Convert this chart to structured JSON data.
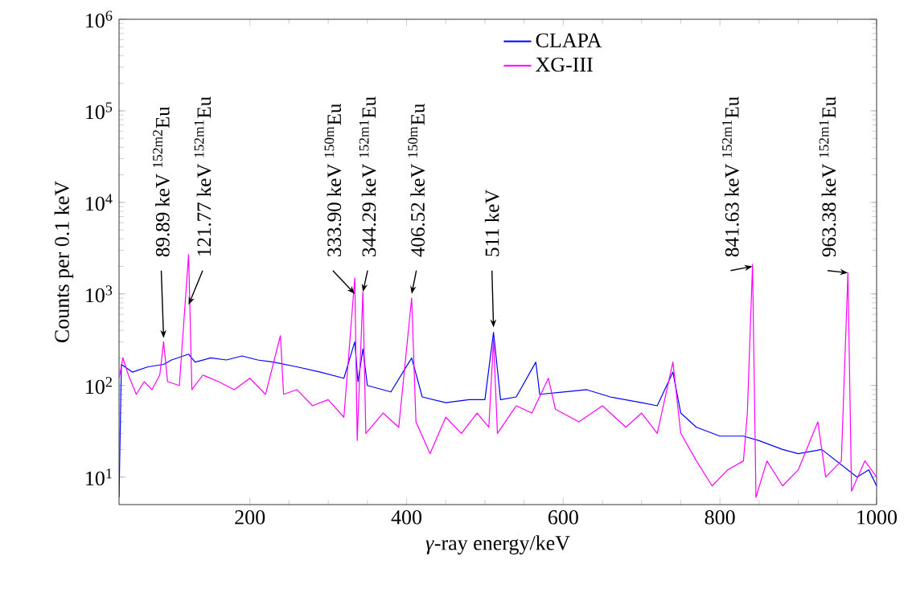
{
  "chart_data": {
    "type": "line",
    "xlabel": "*γ*-ray energy/keV",
    "ylabel": "Counts per 0.1 keV",
    "log": "y",
    "grid": false,
    "legend": "top",
    "marker": "none",
    "line_style": "solid",
    "xlim": [
      33,
      1000
    ],
    "xticks": [
      200,
      400,
      600,
      800,
      1000
    ],
    "ylim": [
      5,
      1000000
    ],
    "yticks": [
      {
        "value": 10,
        "label": "10$^{1}$"
      },
      {
        "value": 100,
        "label": "10$^{2}$"
      },
      {
        "value": 1000,
        "label": "10$^{3}$"
      },
      {
        "value": 10000,
        "label": "10$^{4}$"
      },
      {
        "value": 100000,
        "label": "10$^{5}$"
      },
      {
        "value": 1000000,
        "label": "10$^{6}$"
      }
    ],
    "series": [
      {
        "name": "CLAPA",
        "color": "#0000ff",
        "x": [
          33,
          36,
          50,
          70,
          90,
          100,
          121.77,
          130,
          150,
          170,
          190,
          210,
          230,
          260,
          290,
          320,
          333.9,
          338,
          344.29,
          350,
          380,
          406.52,
          420,
          450,
          480,
          500,
          511,
          520,
          540,
          565,
          570,
          600,
          630,
          660,
          700,
          720,
          740,
          750,
          770,
          800,
          830,
          841.63,
          850,
          880,
          900,
          930,
          963.38,
          975,
          990,
          1000
        ],
        "values": [
          6,
          170,
          140,
          160,
          170,
          190,
          220,
          180,
          200,
          190,
          210,
          190,
          180,
          160,
          140,
          120,
          300,
          110,
          250,
          100,
          85,
          200,
          75,
          65,
          70,
          70,
          380,
          70,
          75,
          180,
          80,
          85,
          90,
          75,
          65,
          60,
          140,
          50,
          35,
          28,
          28,
          null,
          25,
          20,
          18,
          20,
          null,
          10,
          12,
          8
        ]
      },
      {
        "name": "XG-III",
        "color": "#ff00ff",
        "x": [
          33,
          38,
          45,
          55,
          65,
          75,
          85,
          89.89,
          95,
          110,
          121.77,
          126,
          140,
          160,
          180,
          200,
          220,
          239,
          243,
          260,
          280,
          300,
          320,
          333.9,
          337,
          344.29,
          348,
          370,
          390,
          406.52,
          412,
          430,
          450,
          470,
          490,
          505,
          511,
          516,
          540,
          560,
          581,
          590,
          620,
          650,
          680,
          700,
          720,
          740,
          750,
          770,
          790,
          810,
          830,
          835,
          841.63,
          846,
          860,
          880,
          900,
          925,
          935,
          955,
          963.38,
          968,
          985,
          1000
        ],
        "values": [
          120,
          200,
          130,
          80,
          110,
          90,
          130,
          300,
          110,
          100,
          2700,
          90,
          130,
          110,
          90,
          120,
          80,
          350,
          80,
          90,
          60,
          70,
          45,
          1500,
          25,
          1050,
          30,
          50,
          35,
          900,
          40,
          18,
          45,
          30,
          50,
          35,
          320,
          30,
          60,
          50,
          120,
          55,
          40,
          60,
          35,
          50,
          30,
          180,
          30,
          15,
          8,
          12,
          15,
          50,
          2100,
          6,
          15,
          8,
          12,
          40,
          10,
          15,
          1700,
          7,
          15,
          10
        ]
      }
    ],
    "annotations": [
      {
        "text": "89.89 keV $^{152m2}$Eu",
        "x": 89.89,
        "y": 330
      },
      {
        "text": "121.77 keV $^{152m1}$Eu",
        "x": 121.77,
        "y": 760
      },
      {
        "text": "333.90 keV $^{150m}$Eu",
        "x": 333.9,
        "y": 1000
      },
      {
        "text": "344.29 keV $^{152m1}$Eu",
        "x": 344.29,
        "y": 1050
      },
      {
        "text": "406.52 keV $^{150m}$Eu",
        "x": 406.52,
        "y": 1000
      },
      {
        "text": "511 keV",
        "x": 511,
        "y": 430
      },
      {
        "text": "841.63 keV $^{152m1}$Eu",
        "x": 841.63,
        "y": 2000
      },
      {
        "text": "963.38 keV $^{152m1}$Eu",
        "x": 963.38,
        "y": 1700
      }
    ]
  }
}
